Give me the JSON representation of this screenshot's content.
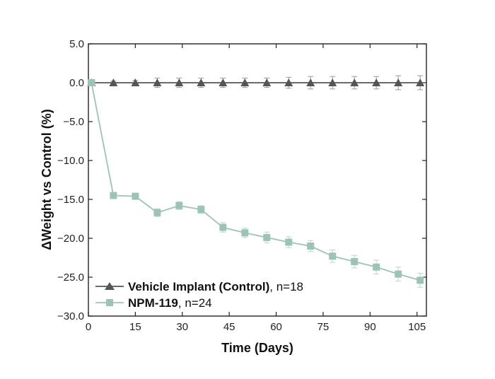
{
  "chart_data": {
    "type": "line",
    "title": "",
    "xlabel": "Time (Days)",
    "ylabel": "Weight vs Control (%)",
    "ylabel_prefix": "Δ",
    "xlim": [
      0,
      108
    ],
    "ylim": [
      -30,
      5
    ],
    "xticks": [
      0,
      15,
      30,
      45,
      60,
      75,
      90,
      105
    ],
    "yticks": [
      5.0,
      0.0,
      -5.0,
      -10.0,
      -15.0,
      -20.0,
      -25.0,
      -30.0
    ],
    "ytick_labels": [
      "5.0",
      "0.0",
      "−5.0",
      "−10.0",
      "−15.0",
      "−20.0",
      "−25.0",
      "−30.0"
    ],
    "legend_position": "bottom-left",
    "series": [
      {
        "name_bold": "Vehicle Implant (Control)",
        "name_suffix": ", n=18",
        "marker": "triangle",
        "color": "#555555",
        "x": [
          1,
          8,
          15,
          22,
          29,
          36,
          43,
          50,
          57,
          64,
          71,
          78,
          85,
          92,
          99,
          106
        ],
        "values": [
          0,
          0,
          0,
          0,
          0,
          0,
          0,
          0,
          0,
          0,
          0,
          0,
          0,
          0,
          0,
          0
        ],
        "errors": [
          0,
          0.2,
          0.3,
          0.6,
          0.6,
          0.6,
          0.6,
          0.6,
          0.6,
          0.7,
          0.8,
          0.8,
          0.8,
          0.8,
          0.9,
          0.9
        ]
      },
      {
        "name_bold": "NPM-119",
        "name_suffix": ", n=24",
        "marker": "square",
        "color": "#9dc3b5",
        "x": [
          1,
          8,
          15,
          22,
          29,
          36,
          43,
          50,
          57,
          64,
          71,
          78,
          85,
          92,
          99,
          106
        ],
        "values": [
          0,
          -14.5,
          -14.6,
          -16.7,
          -15.8,
          -16.3,
          -18.6,
          -19.3,
          -19.9,
          -20.5,
          -21.0,
          -22.3,
          -23.0,
          -23.7,
          -24.6,
          -25.4
        ],
        "errors": [
          0,
          0.3,
          0.4,
          0.5,
          0.5,
          0.5,
          0.6,
          0.6,
          0.7,
          0.7,
          0.7,
          0.8,
          0.8,
          0.9,
          0.9,
          0.9
        ]
      }
    ]
  }
}
